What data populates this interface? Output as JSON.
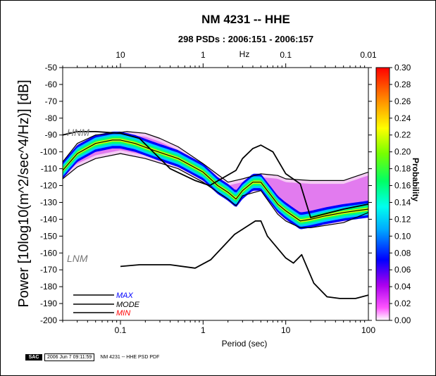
{
  "header": {
    "title": "NM 4231 -- HHE",
    "subtitle": "298 PSDs : 2006:151 - 2006:157"
  },
  "footer": {
    "logo": "SAC",
    "timestamp": "2006 Jun  7 09:11:59",
    "label": "NM 4231 -- HHE PSD PDF"
  },
  "colors": {
    "model_curves": "#000000",
    "mode_line": "#000000",
    "legend_max": "#0000ff",
    "legend_mode": "#000000",
    "legend_min": "#ff0000",
    "model_label": "#777777"
  },
  "chart_data": {
    "type": "heatmap",
    "title": "NM 4231 -- HHE",
    "subtitle": "298 PSDs : 2006:151 - 2006:157",
    "xlabel": "Period (sec)",
    "x2label": "Hz",
    "ylabel": "Power [10log10(m^2/sec^4/Hz)] [dB]",
    "x_scale": "log",
    "xlim": [
      0.02,
      100
    ],
    "ylim": [
      -200,
      -50
    ],
    "x_ticks": [
      0.1,
      1,
      10,
      100
    ],
    "x_tick_labels": [
      "0.1",
      "1",
      "10",
      "100"
    ],
    "x2_ticks": [
      0.1,
      1,
      10,
      100
    ],
    "x2_tick_labels": [
      "10",
      "1",
      "0.1",
      "0.01"
    ],
    "y_ticks": [
      -200,
      -190,
      -180,
      -170,
      -160,
      -150,
      -140,
      -130,
      -120,
      -110,
      -100,
      -90,
      -80,
      -70,
      -60,
      -50
    ],
    "y_tick_labels": [
      "-200",
      "-190",
      "-180",
      "-170",
      "-160",
      "-150",
      "-140",
      "-130",
      "-120",
      "-110",
      "-100",
      "-90",
      "-80",
      "-70",
      "-60",
      "-50"
    ],
    "colorbar": {
      "label": "Probability",
      "range": [
        0.0,
        0.3
      ],
      "ticks": [
        "0.00",
        "0.02",
        "0.04",
        "0.06",
        "0.08",
        "0.10",
        "0.12",
        "0.14",
        "0.16",
        "0.18",
        "0.20",
        "0.22",
        "0.24",
        "0.26",
        "0.28",
        "0.30"
      ]
    },
    "legend": [
      "MAX",
      "MODE",
      "MIN"
    ],
    "legend_position": "bottom-left",
    "model_labels": {
      "high": "HNM",
      "low": "LNM"
    },
    "series": [
      {
        "name": "MODE",
        "x": [
          0.02,
          0.03,
          0.05,
          0.08,
          0.1,
          0.15,
          0.25,
          0.5,
          1,
          1.5,
          2,
          2.5,
          3,
          4,
          5,
          6,
          8,
          10,
          15,
          20,
          30,
          50,
          100
        ],
        "y": [
          -111,
          -101,
          -95,
          -93,
          -93,
          -95,
          -99,
          -104,
          -112,
          -120,
          -124,
          -128,
          -123,
          -118,
          -118,
          -123,
          -131,
          -135,
          -141,
          -140,
          -138,
          -136,
          -134
        ]
      },
      {
        "name": "MAX",
        "x": [
          0.02,
          0.03,
          0.05,
          0.08,
          0.12,
          0.2,
          0.3,
          0.5,
          1,
          2,
          3,
          5,
          8,
          10,
          20,
          30,
          50,
          100
        ],
        "y": [
          -106,
          -95,
          -90,
          -89,
          -88,
          -89,
          -92,
          -97,
          -107,
          -118,
          -116,
          -113,
          -114,
          -116,
          -117,
          -117,
          -117,
          -112
        ]
      },
      {
        "name": "MIN",
        "x": [
          0.02,
          0.03,
          0.05,
          0.1,
          0.2,
          0.5,
          1,
          2,
          2.5,
          3,
          5,
          8,
          10,
          15,
          20,
          50,
          100
        ],
        "y": [
          -116,
          -109,
          -104,
          -101,
          -104,
          -110,
          -118,
          -128,
          -132,
          -126,
          -123,
          -137,
          -141,
          -145,
          -145,
          -142,
          -136
        ]
      },
      {
        "name": "HNM",
        "x": [
          0.02,
          0.03,
          0.05,
          0.1,
          0.17,
          0.4,
          0.8,
          1.2,
          2.5,
          3,
          4,
          5,
          7,
          10,
          15,
          20,
          50,
          100
        ],
        "y": [
          -90,
          -88,
          -88,
          -89,
          -92,
          -110,
          -117,
          -120,
          -111,
          -104,
          -98,
          -96,
          -100,
          -113,
          -119,
          -139,
          -134,
          -131
        ]
      },
      {
        "name": "LNM",
        "x": [
          0.1,
          0.17,
          0.4,
          0.8,
          1.24,
          2.4,
          4.3,
          5,
          6,
          10,
          12.4,
          15.6,
          21.9,
          31.6,
          45,
          70,
          100
        ],
        "y": [
          -168,
          -167,
          -167,
          -169,
          -164,
          -149,
          -141,
          -141,
          -150,
          -163,
          -166,
          -161,
          -178,
          -186,
          -187,
          -187,
          -185
        ]
      }
    ]
  }
}
